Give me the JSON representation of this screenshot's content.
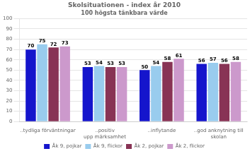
{
  "chart_data": {
    "type": "bar",
    "title": "Skolsituationen - index år 2010",
    "subtitle": "100 högsta tänkbara värde",
    "categories": [
      "..tydliga förväntningar",
      "..positiv\nupp märksamhet",
      "..inflytande",
      "..god anknytning till\nskolan"
    ],
    "series": [
      {
        "name": "Åk 9, pojkar",
        "color": "#1515CC",
        "values": [
          70,
          53,
          50,
          56
        ]
      },
      {
        "name": "Åk 9, flickor",
        "color": "#99CCEE",
        "values": [
          75,
          54,
          54,
          57
        ]
      },
      {
        "name": "Åk 2, pojkar",
        "color": "#883355",
        "values": [
          72,
          53,
          58,
          56
        ]
      },
      {
        "name": "Åk 2, flickor",
        "color": "#CC99CC",
        "values": [
          73,
          53,
          61,
          58
        ]
      }
    ],
    "ylim": [
      0,
      100
    ],
    "yticks": [
      0,
      10,
      20,
      30,
      40,
      50,
      60,
      70,
      80,
      90,
      100
    ],
    "grid": true,
    "legend": "bottom",
    "data_labels": true
  }
}
